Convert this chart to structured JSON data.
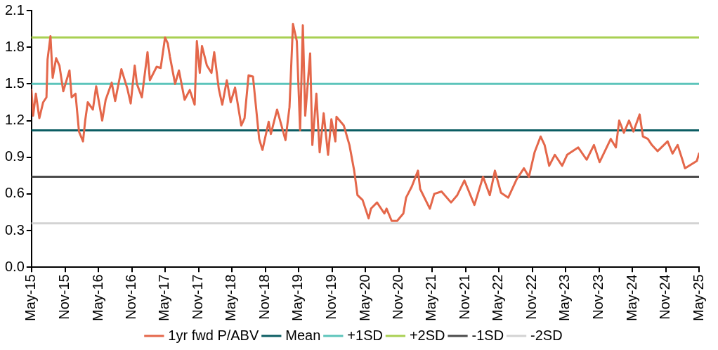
{
  "chart_data": {
    "type": "line",
    "xlim": [
      "2015-05",
      "2025-05"
    ],
    "xticks": [
      {
        "value": "2015-05",
        "label": "May-15"
      },
      {
        "value": "2015-11",
        "label": "Nov-15"
      },
      {
        "value": "2016-05",
        "label": "May-16"
      },
      {
        "value": "2016-11",
        "label": "Nov-16"
      },
      {
        "value": "2017-05",
        "label": "May-17"
      },
      {
        "value": "2017-11",
        "label": "Nov-17"
      },
      {
        "value": "2018-05",
        "label": "May-18"
      },
      {
        "value": "2018-11",
        "label": "Nov-18"
      },
      {
        "value": "2019-05",
        "label": "May-19"
      },
      {
        "value": "2019-11",
        "label": "Nov-19"
      },
      {
        "value": "2020-05",
        "label": "May-20"
      },
      {
        "value": "2020-11",
        "label": "Nov-20"
      },
      {
        "value": "2021-05",
        "label": "May-21"
      },
      {
        "value": "2021-11",
        "label": "Nov-21"
      },
      {
        "value": "2022-05",
        "label": "May-22"
      },
      {
        "value": "2022-11",
        "label": "Nov-22"
      },
      {
        "value": "2023-05",
        "label": "May-23"
      },
      {
        "value": "2023-11",
        "label": "Nov-23"
      },
      {
        "value": "2024-05",
        "label": "May-24"
      },
      {
        "value": "2024-11",
        "label": "Nov-24"
      },
      {
        "value": "2025-05",
        "label": "May-25"
      }
    ],
    "ylim": [
      0,
      2.1
    ],
    "yticks": [
      {
        "value": 0,
        "label": "0.0"
      },
      0.3,
      0.6,
      0.9,
      1.2,
      1.5,
      1.8,
      2.1
    ],
    "grid": false,
    "legend": "bottom",
    "marker": "none",
    "line_style": "solid",
    "series": [
      {
        "name": "1yr fwd P/ABV",
        "color": "#e4674a",
        "x": [
          "2015-05-01",
          "2015-05-10",
          "2015-05-25",
          "2015-06-13",
          "2015-07-04",
          "2015-07-22",
          "2015-07-28",
          "2015-08-13",
          "2015-08-25",
          "2015-09-13",
          "2015-10-01",
          "2015-10-22",
          "2015-11-25",
          "2015-12-07",
          "2015-12-28",
          "2016-01-16",
          "2016-02-07",
          "2016-02-19",
          "2016-03-04",
          "2016-04-01",
          "2016-04-19",
          "2016-05-22",
          "2016-06-10",
          "2016-07-13",
          "2016-08-01",
          "2016-09-04",
          "2016-10-07",
          "2016-10-25",
          "2016-11-16",
          "2016-11-28",
          "2016-12-25",
          "2017-01-25",
          "2017-02-07",
          "2017-03-16",
          "2017-04-07",
          "2017-05-01",
          "2017-05-16",
          "2017-05-28",
          "2017-06-25",
          "2017-07-16",
          "2017-08-16",
          "2017-09-13",
          "2017-10-10",
          "2017-10-22",
          "2017-11-07",
          "2017-11-19",
          "2017-12-16",
          "2018-01-10",
          "2018-01-25",
          "2018-02-19",
          "2018-03-10",
          "2018-04-04",
          "2018-04-25",
          "2018-05-19",
          "2018-06-22",
          "2018-07-10",
          "2018-08-01",
          "2018-08-25",
          "2018-09-28",
          "2018-10-16",
          "2018-11-19",
          "2018-12-01",
          "2019-01-04",
          "2019-02-19",
          "2019-03-13",
          "2019-04-01",
          "2019-04-22",
          "2019-05-10",
          "2019-05-25",
          "2019-06-07",
          "2019-07-04",
          "2019-07-16",
          "2019-08-07",
          "2019-08-25",
          "2019-09-16",
          "2019-10-10",
          "2019-10-28",
          "2019-11-19",
          "2019-11-25",
          "2020-01-04",
          "2020-02-04",
          "2020-03-01",
          "2020-03-19",
          "2020-04-16",
          "2020-05-19",
          "2020-06-01",
          "2020-07-04",
          "2020-08-13",
          "2020-08-25",
          "2020-09-22",
          "2020-10-22",
          "2020-11-25",
          "2020-12-10",
          "2021-01-10",
          "2021-02-13",
          "2021-02-25",
          "2021-04-19",
          "2021-05-13",
          "2021-06-22",
          "2021-08-13",
          "2021-09-16",
          "2021-10-25",
          "2021-12-19",
          "2022-02-04",
          "2022-03-13",
          "2022-04-10",
          "2022-05-13",
          "2022-06-22",
          "2022-08-07",
          "2022-09-16",
          "2022-10-13",
          "2022-11-13",
          "2022-12-16",
          "2023-01-07",
          "2023-02-01",
          "2023-03-04",
          "2023-04-13",
          "2023-05-10",
          "2023-07-10",
          "2023-08-25",
          "2023-10-04",
          "2023-11-04",
          "2024-01-04",
          "2024-02-01",
          "2024-02-19",
          "2024-03-16",
          "2024-04-13",
          "2024-05-07",
          "2024-06-10",
          "2024-06-28",
          "2024-07-25",
          "2024-08-16",
          "2024-09-16",
          "2024-11-10",
          "2024-12-07",
          "2025-01-04",
          "2025-02-01",
          "2025-02-13",
          "2025-04-19",
          "2025-05-01"
        ],
        "values": [
          1.45,
          1.24,
          1.42,
          1.22,
          1.35,
          1.39,
          1.7,
          1.89,
          1.55,
          1.71,
          1.65,
          1.44,
          1.61,
          1.39,
          1.42,
          1.11,
          1.03,
          1.2,
          1.35,
          1.29,
          1.48,
          1.2,
          1.37,
          1.51,
          1.36,
          1.62,
          1.46,
          1.34,
          1.65,
          1.5,
          1.39,
          1.76,
          1.53,
          1.64,
          1.63,
          1.88,
          1.83,
          1.72,
          1.5,
          1.61,
          1.37,
          1.45,
          1.33,
          1.85,
          1.59,
          1.81,
          1.65,
          1.59,
          1.76,
          1.46,
          1.33,
          1.53,
          1.35,
          1.47,
          1.16,
          1.22,
          1.57,
          1.56,
          1.05,
          0.96,
          1.19,
          1.09,
          1.29,
          1.04,
          1.31,
          1.99,
          1.85,
          1.12,
          1.98,
          1.24,
          1.75,
          1.0,
          1.42,
          0.94,
          1.26,
          0.92,
          1.21,
          1.03,
          1.23,
          1.16,
          1.0,
          0.79,
          0.59,
          0.55,
          0.4,
          0.48,
          0.53,
          0.44,
          0.48,
          0.38,
          0.38,
          0.44,
          0.57,
          0.66,
          0.79,
          0.64,
          0.48,
          0.6,
          0.62,
          0.53,
          0.59,
          0.71,
          0.51,
          0.74,
          0.59,
          0.79,
          0.61,
          0.57,
          0.72,
          0.81,
          0.74,
          0.94,
          1.07,
          1.0,
          0.83,
          0.92,
          0.83,
          0.92,
          0.98,
          0.88,
          1.0,
          0.86,
          1.05,
          0.98,
          1.2,
          1.1,
          1.2,
          1.11,
          1.25,
          1.07,
          1.05,
          1.0,
          0.95,
          1.03,
          0.93,
          1.0,
          0.87,
          0.81,
          0.87,
          0.93
        ]
      },
      {
        "name": "Mean",
        "color": "#0b5d63",
        "x": [
          "2015-05",
          "2025-05"
        ],
        "values": [
          1.12,
          1.12
        ]
      },
      {
        "name": "+1SD",
        "color": "#5cc4bb",
        "x": [
          "2015-05",
          "2025-05"
        ],
        "values": [
          1.5,
          1.5
        ]
      },
      {
        "name": "+2SD",
        "color": "#a9d053",
        "x": [
          "2015-05",
          "2025-05"
        ],
        "values": [
          1.88,
          1.88
        ]
      },
      {
        "name": "-1SD",
        "color": "#4a4a4a",
        "x": [
          "2015-05",
          "2025-05"
        ],
        "values": [
          0.74,
          0.74
        ]
      },
      {
        "name": "-2SD",
        "color": "#d3d3d3",
        "x": [
          "2015-05",
          "2025-05"
        ],
        "values": [
          0.36,
          0.36
        ]
      }
    ]
  }
}
